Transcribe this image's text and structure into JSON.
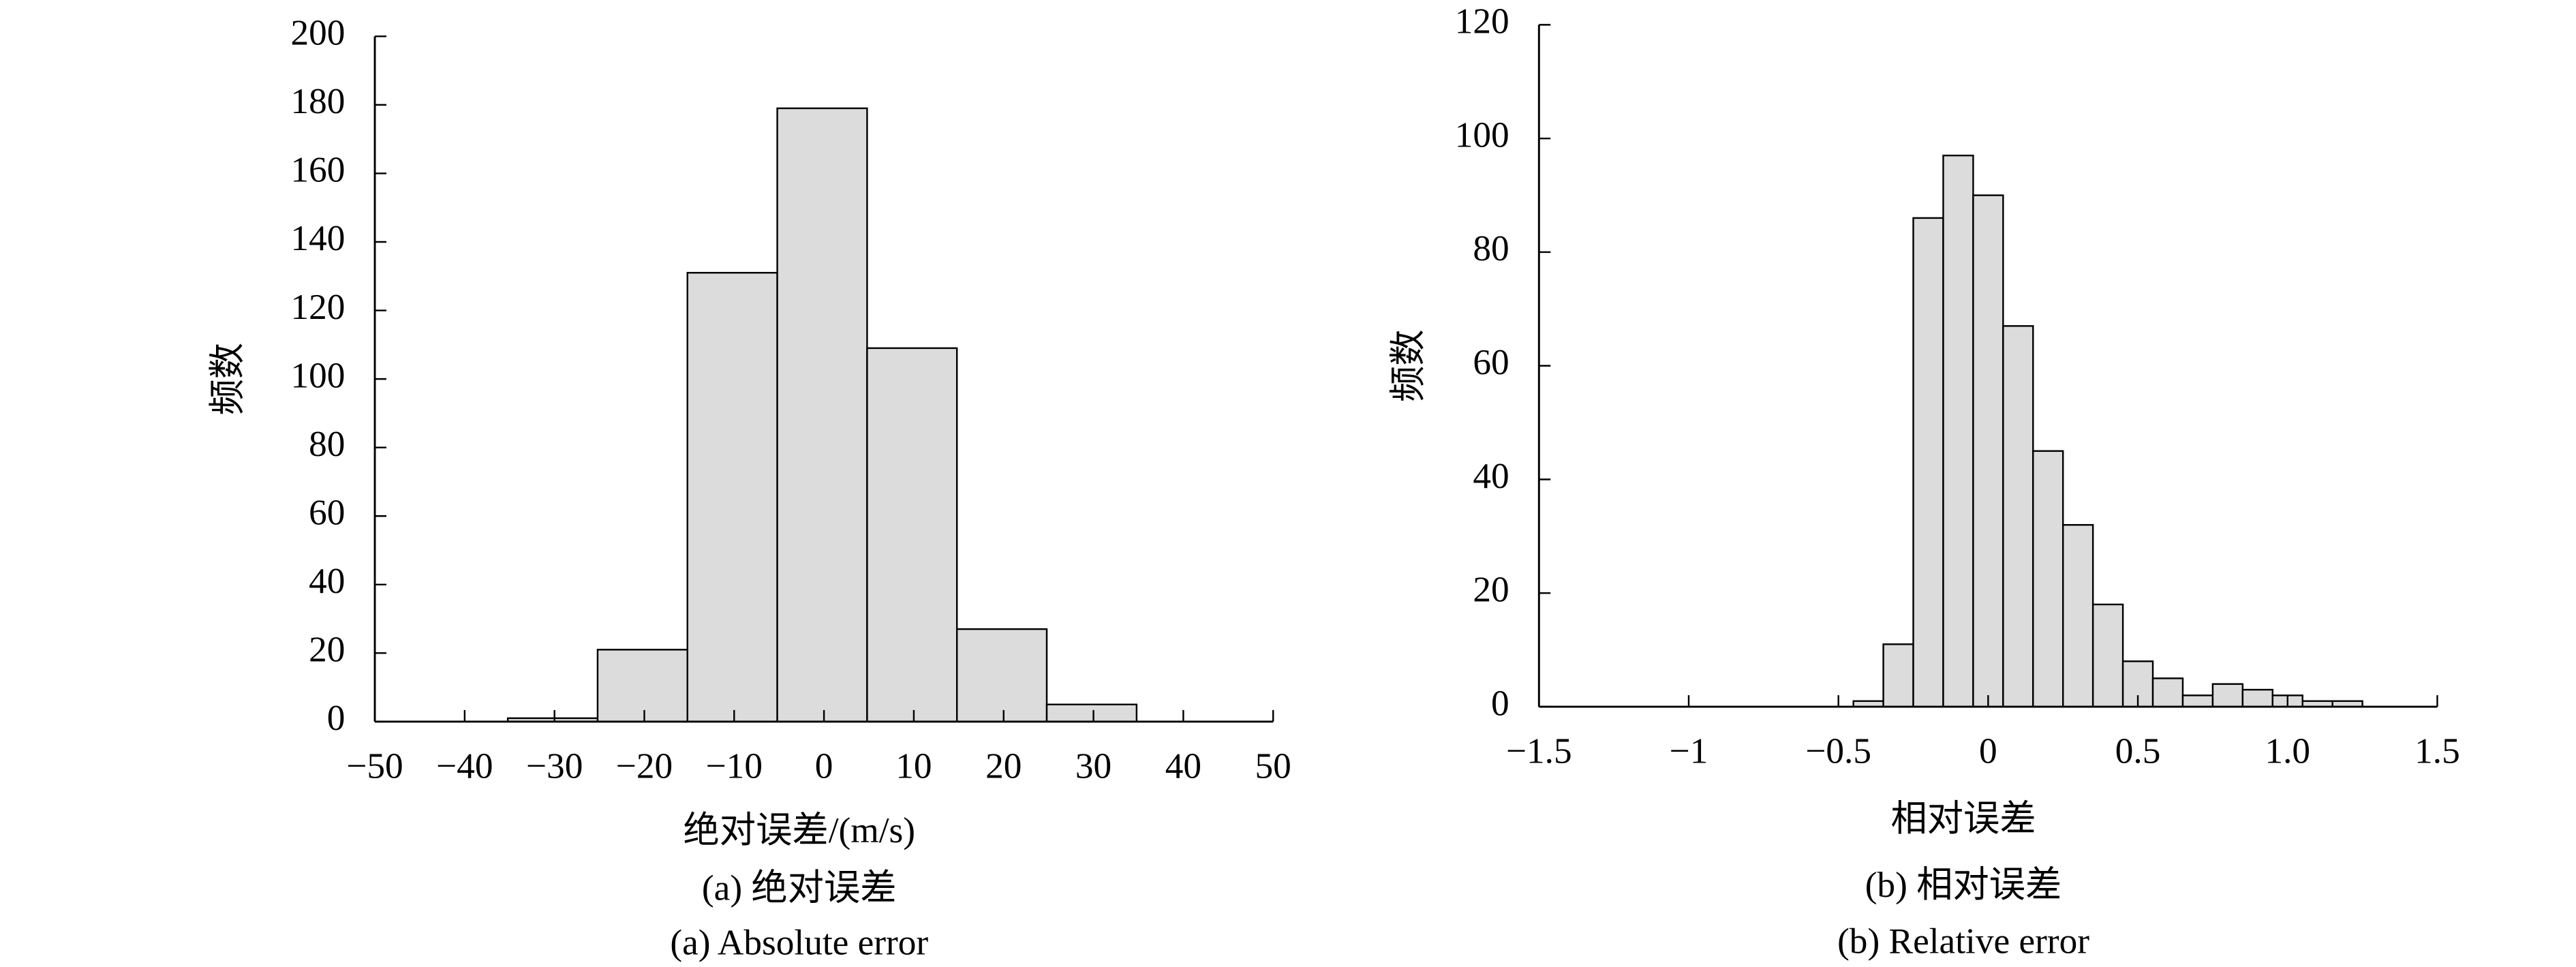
{
  "chart_data": [
    {
      "type": "histogram",
      "y_label": "频数",
      "x_label": "绝对误差/(m/s)",
      "captions": [
        "(a) 绝对误差",
        "(a) Absolute error"
      ],
      "bins": [
        -35.2,
        -25.2,
        -15.2,
        -5.2,
        4.8,
        14.8,
        24.8,
        34.8
      ],
      "values": [
        1,
        21,
        131,
        179,
        109,
        27,
        5
      ],
      "color": "#dcdcdc",
      "xlim": [
        -50,
        50
      ],
      "xticks": [
        {
          "value": -50,
          "label": "−50"
        },
        {
          "value": -40,
          "label": "−40"
        },
        {
          "value": -30,
          "label": "−30"
        },
        {
          "value": -20,
          "label": "−20"
        },
        {
          "value": -10,
          "label": "−10"
        },
        0,
        10,
        20,
        30,
        40,
        50
      ],
      "ylim": [
        0,
        200
      ],
      "yticks": [
        0,
        20,
        40,
        60,
        80,
        100,
        120,
        140,
        160,
        180,
        200
      ]
    },
    {
      "type": "histogram",
      "y_label": "频数",
      "x_label": "相对误差",
      "captions": [
        "(b) 相对误差",
        "(b) Relative error"
      ],
      "bins": [
        -0.45,
        -0.35,
        -0.25,
        -0.15,
        -0.05,
        0.05,
        0.15,
        0.25,
        0.35,
        0.45,
        0.55,
        0.65,
        0.75,
        0.85,
        0.95,
        1.05,
        1.15,
        1.25
      ],
      "values": [
        1,
        11,
        86,
        97,
        90,
        67,
        45,
        32,
        18,
        8,
        5,
        2,
        4,
        3,
        2,
        1,
        1
      ],
      "color": "#dcdcdc",
      "xlim": [
        -1.5,
        1.5
      ],
      "xticks": [
        {
          "value": -1.5,
          "label": "−1.5"
        },
        {
          "value": -1,
          "label": "−1"
        },
        {
          "value": -0.5,
          "label": "−0.5"
        },
        0,
        0.5,
        {
          "value": 1.0,
          "label": "1.0"
        },
        1.5
      ],
      "ylim": [
        0,
        120
      ],
      "yticks": [
        0,
        20,
        40,
        60,
        80,
        100,
        120
      ]
    }
  ]
}
